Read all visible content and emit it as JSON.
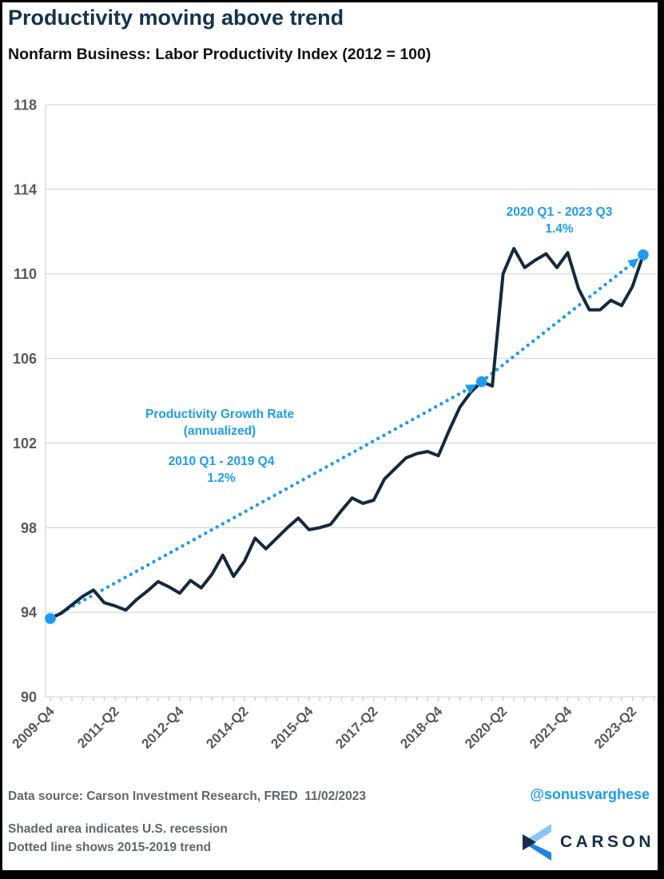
{
  "header": {
    "title": "Productivity moving above trend",
    "subtitle": "Nonfarm Business: Labor Productivity Index (2012 = 100)"
  },
  "footer": {
    "source": "Data source: Carson Investment Research, FRED  11/02/2023",
    "handle": "@sonusvarghese",
    "note1": "Shaded area indicates U.S. recession",
    "note2": "Dotted line shows 2015-2019 trend",
    "logo_text": "CARSON"
  },
  "colors": {
    "line": "#15293D",
    "accent_blue": "#1E9BF0",
    "title_navy": "#14334E",
    "grid": "#D9D9D9",
    "axis_text": "#595959",
    "footer_text": "#5C676E",
    "logo_light_blue": "#8AC6F2",
    "logo_bright_blue": "#1E86E0",
    "logo_navy": "#142E4B"
  },
  "chart_data": {
    "type": "line",
    "title": "Nonfarm Business: Labor Productivity Index (2012 = 100)",
    "xlabel": "",
    "ylabel": "",
    "x_unit": "quarter",
    "x_start": "2009-Q4",
    "x_end": "2023-Q3",
    "ylim": [
      90,
      119
    ],
    "yticks": [
      90,
      94,
      98,
      102,
      106,
      110,
      114,
      118
    ],
    "grid": "horizontal",
    "xtick_labels": [
      "2009-Q4",
      "2011-Q2",
      "2012-Q4",
      "2014-Q2",
      "2015-Q4",
      "2017-Q2",
      "2018-Q4",
      "2020-Q2",
      "2021-Q4",
      "2023-Q2"
    ],
    "xtick_positions": [
      0,
      6,
      12,
      18,
      24,
      30,
      36,
      42,
      48,
      54
    ],
    "series": [
      {
        "name": "Labor Productivity Index",
        "values": [
          93.7,
          93.95,
          94.35,
          94.75,
          95.05,
          94.45,
          94.3,
          94.1,
          94.6,
          95.0,
          95.45,
          95.2,
          94.9,
          95.5,
          95.15,
          95.8,
          96.7,
          95.7,
          96.4,
          97.5,
          97.0,
          97.5,
          98.0,
          98.45,
          97.9,
          98.0,
          98.15,
          98.8,
          99.4,
          99.15,
          99.3,
          100.3,
          100.8,
          101.3,
          101.5,
          101.6,
          101.4,
          102.6,
          103.7,
          104.4,
          104.9,
          104.7,
          110.0,
          111.2,
          110.3,
          110.65,
          110.95,
          110.3,
          111.0,
          109.3,
          108.3,
          108.3,
          108.75,
          108.5,
          109.4,
          110.9
        ]
      }
    ],
    "trend_segments": [
      {
        "range": "2010 Q1 - 2019 Q4",
        "rate": "1.2%",
        "from_q": 0,
        "from_value": 93.7,
        "to_q": 40,
        "to_value": 104.9
      },
      {
        "range": "2020 Q1 - 2023 Q3",
        "rate": "1.4%",
        "from_q": 40,
        "from_value": 104.9,
        "to_q": 55,
        "to_value": 110.9
      }
    ],
    "markers": [
      {
        "label": "2009-Q4",
        "q": 0,
        "value": 93.7
      },
      {
        "label": "2019-Q4",
        "q": 40,
        "value": 104.9
      },
      {
        "label": "2023-Q3",
        "q": 55,
        "value": 110.9
      }
    ],
    "annotations": {
      "growth_label": [
        "Productivity Growth Rate",
        "(annualized)"
      ],
      "trend1": {
        "range": "2010 Q1 - 2019 Q4",
        "rate": "1.2%"
      },
      "trend2": {
        "range": "2020 Q1 - 2023 Q3",
        "rate": "1.4%"
      }
    }
  }
}
